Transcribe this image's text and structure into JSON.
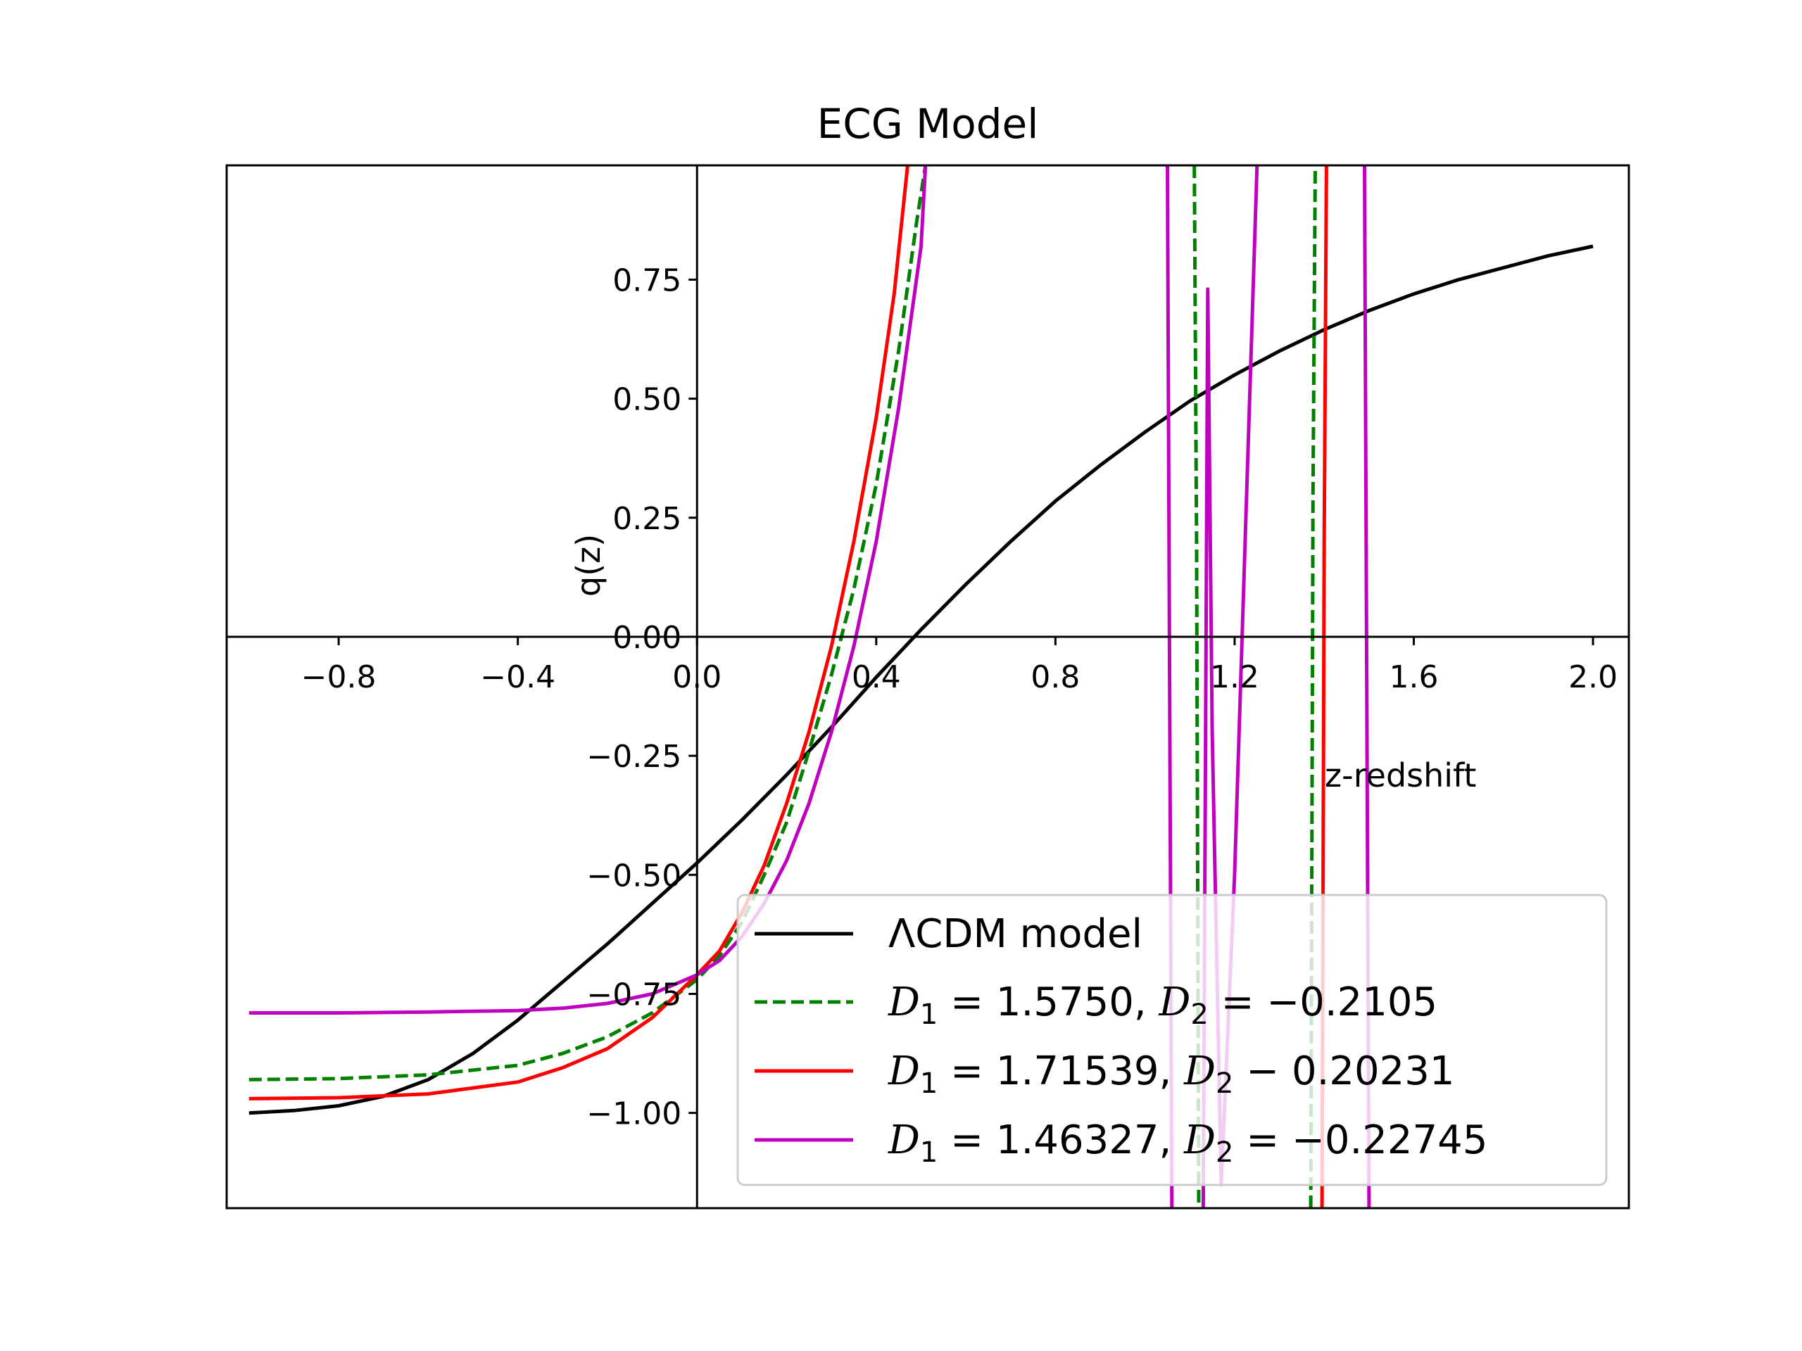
{
  "chart_data": {
    "type": "line",
    "title": "ECG Model",
    "xlabel": "z-redshift",
    "ylabel": "q(z)",
    "xlim": [
      -1.05,
      2.08
    ],
    "ylim": [
      -1.2,
      0.99
    ],
    "grid": false,
    "legend_position": "lower-right",
    "x_ticks": [
      -0.8,
      -0.4,
      0.0,
      0.4,
      0.8,
      1.2,
      1.6,
      2.0
    ],
    "x_tick_labels": [
      "−0.8",
      "−0.4",
      "0.0",
      "0.4",
      "0.8",
      "1.2",
      "1.6",
      "2.0"
    ],
    "y_ticks": [
      -1.0,
      -0.75,
      -0.5,
      -0.25,
      0.0,
      0.25,
      0.5,
      0.75
    ],
    "y_tick_labels": [
      "−1.00",
      "−0.75",
      "−0.50",
      "−0.25",
      "0.00",
      "0.25",
      "0.50",
      "0.75"
    ],
    "series": [
      {
        "name": "ΛCDM model",
        "color": "#000000",
        "style": "solid",
        "segments": [
          [
            [
              -1.0,
              -1.0
            ],
            [
              -0.9,
              -0.995
            ],
            [
              -0.8,
              -0.985
            ],
            [
              -0.7,
              -0.965
            ],
            [
              -0.6,
              -0.93
            ],
            [
              -0.5,
              -0.875
            ],
            [
              -0.4,
              -0.805
            ],
            [
              -0.3,
              -0.725
            ],
            [
              -0.2,
              -0.645
            ],
            [
              -0.1,
              -0.56
            ],
            [
              0.0,
              -0.475
            ],
            [
              0.1,
              -0.385
            ],
            [
              0.2,
              -0.29
            ],
            [
              0.3,
              -0.19
            ],
            [
              0.4,
              -0.085
            ],
            [
              0.5,
              0.015
            ],
            [
              0.6,
              0.11
            ],
            [
              0.7,
              0.2
            ],
            [
              0.8,
              0.285
            ],
            [
              0.9,
              0.36
            ],
            [
              1.0,
              0.43
            ],
            [
              1.1,
              0.495
            ],
            [
              1.2,
              0.55
            ],
            [
              1.3,
              0.6
            ],
            [
              1.4,
              0.645
            ],
            [
              1.5,
              0.685
            ],
            [
              1.6,
              0.72
            ],
            [
              1.7,
              0.75
            ],
            [
              1.8,
              0.775
            ],
            [
              1.9,
              0.8
            ],
            [
              2.0,
              0.82
            ]
          ]
        ]
      },
      {
        "name": "D₁ = 1.5750, D₂ = −0.2105",
        "legend_main_1": "D",
        "legend_sub_1": "1",
        "legend_rest_1": " = 1.5750, ",
        "legend_main_2": "D",
        "legend_sub_2": "2",
        "legend_rest_2": " = −0.2105",
        "color": "#008000",
        "style": "dashed",
        "segments": [
          [
            [
              -1.0,
              -0.93
            ],
            [
              -0.8,
              -0.928
            ],
            [
              -0.6,
              -0.92
            ],
            [
              -0.4,
              -0.9
            ],
            [
              -0.3,
              -0.875
            ],
            [
              -0.2,
              -0.84
            ],
            [
              -0.1,
              -0.79
            ],
            [
              0.0,
              -0.72
            ],
            [
              0.05,
              -0.67
            ],
            [
              0.1,
              -0.6
            ],
            [
              0.15,
              -0.5
            ],
            [
              0.2,
              -0.39
            ],
            [
              0.25,
              -0.24
            ],
            [
              0.3,
              -0.08
            ],
            [
              0.35,
              0.1
            ],
            [
              0.4,
              0.32
            ],
            [
              0.45,
              0.6
            ],
            [
              0.49,
              0.87
            ],
            [
              0.51,
              0.99
            ]
          ],
          [
            [
              1.11,
              0.99
            ],
            [
              1.115,
              0.2
            ],
            [
              1.12,
              -1.2
            ]
          ],
          [
            [
              1.37,
              -1.2
            ],
            [
              1.375,
              0.3
            ],
            [
              1.38,
              0.99
            ]
          ]
        ]
      },
      {
        "name": "D₁ = 1.71539, D₂ − 0.20231",
        "legend_main_1": "D",
        "legend_sub_1": "1",
        "legend_rest_1": " = 1.71539, ",
        "legend_main_2": "D",
        "legend_sub_2": "2",
        "legend_rest_2": " − 0.20231",
        "color": "#ff0000",
        "style": "solid",
        "segments": [
          [
            [
              -1.0,
              -0.97
            ],
            [
              -0.8,
              -0.968
            ],
            [
              -0.6,
              -0.96
            ],
            [
              -0.4,
              -0.935
            ],
            [
              -0.3,
              -0.905
            ],
            [
              -0.2,
              -0.865
            ],
            [
              -0.1,
              -0.8
            ],
            [
              0.0,
              -0.71
            ],
            [
              0.05,
              -0.66
            ],
            [
              0.1,
              -0.58
            ],
            [
              0.15,
              -0.48
            ],
            [
              0.2,
              -0.35
            ],
            [
              0.25,
              -0.2
            ],
            [
              0.3,
              -0.02
            ],
            [
              0.35,
              0.2
            ],
            [
              0.4,
              0.46
            ],
            [
              0.44,
              0.72
            ],
            [
              0.47,
              0.99
            ]
          ],
          [
            [
              1.395,
              -1.2
            ],
            [
              1.4,
              0.2
            ],
            [
              1.405,
              0.99
            ]
          ]
        ]
      },
      {
        "name": "D₁ = 1.46327, D₂ = −0.22745",
        "legend_main_1": "D",
        "legend_sub_1": "1",
        "legend_rest_1": " = 1.46327, ",
        "legend_main_2": "D",
        "legend_sub_2": "2",
        "legend_rest_2": " = −0.22745",
        "color": "#bf00bf",
        "style": "solid",
        "segments": [
          [
            [
              -1.0,
              -0.79
            ],
            [
              -0.8,
              -0.79
            ],
            [
              -0.6,
              -0.788
            ],
            [
              -0.4,
              -0.785
            ],
            [
              -0.3,
              -0.78
            ],
            [
              -0.2,
              -0.77
            ],
            [
              -0.1,
              -0.75
            ],
            [
              0.0,
              -0.71
            ],
            [
              0.05,
              -0.68
            ],
            [
              0.1,
              -0.63
            ],
            [
              0.15,
              -0.56
            ],
            [
              0.2,
              -0.47
            ],
            [
              0.25,
              -0.35
            ],
            [
              0.3,
              -0.2
            ],
            [
              0.35,
              -0.02
            ],
            [
              0.4,
              0.2
            ],
            [
              0.45,
              0.48
            ],
            [
              0.5,
              0.82
            ],
            [
              0.51,
              0.99
            ]
          ],
          [
            [
              1.05,
              0.99
            ],
            [
              1.06,
              -1.2
            ]
          ],
          [
            [
              1.13,
              -1.2
            ],
            [
              1.14,
              0.73
            ],
            [
              1.15,
              -0.2
            ],
            [
              1.17,
              -1.15
            ],
            [
              1.2,
              -0.5
            ],
            [
              1.25,
              0.99
            ]
          ],
          [
            [
              1.49,
              0.99
            ],
            [
              1.5,
              -1.2
            ]
          ]
        ]
      }
    ]
  }
}
